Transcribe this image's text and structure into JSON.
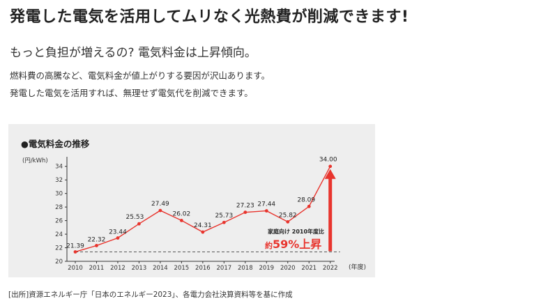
{
  "header": {
    "headline": "発電した電気を活用してムリなく光熱費が削減できます!",
    "subheadline": "もっと負担が増えるの? 電気料金は上昇傾向。",
    "body_lines": [
      "燃料費の高騰など、電気料金が値上がりする要因が沢山あります。",
      "発電した電気を活用すれば、無理せず電気代を削減できます。"
    ]
  },
  "chart_data": {
    "type": "line",
    "title": "●電気料金の推移",
    "ylabel": "(円/kWh)",
    "xlabel": "(年度)",
    "ylim": [
      20,
      35
    ],
    "y_ticks": [
      20,
      22,
      24,
      26,
      28,
      30,
      32,
      34
    ],
    "categories": [
      "2010",
      "2011",
      "2012",
      "2013",
      "2014",
      "2015",
      "2016",
      "2017",
      "2018",
      "2019",
      "2020",
      "2021",
      "2022"
    ],
    "values": [
      21.39,
      22.32,
      23.44,
      25.53,
      27.49,
      26.02,
      24.31,
      25.73,
      27.23,
      27.44,
      25.82,
      28.09,
      34.0
    ],
    "labels": [
      "21.39",
      "22.32",
      "23.44",
      "25.53",
      "27.49",
      "26.02",
      "24.31",
      "25.73",
      "27.23",
      "27.44",
      "25.82",
      "28.09",
      "34.00"
    ],
    "baseline_value": 21.39,
    "annotation": {
      "line1": "家庭向け 2010年度比",
      "prefix": "約",
      "emphasis": "59%上昇"
    },
    "colors": {
      "series": "#e8342d",
      "arrow": "#e8342d",
      "axis": "#333333",
      "baseline": "#555555"
    }
  },
  "footer": {
    "source": "[出所]資源エネルギー庁「日本のエネルギー2023」、各電力会社決算資料等を基に作成"
  }
}
